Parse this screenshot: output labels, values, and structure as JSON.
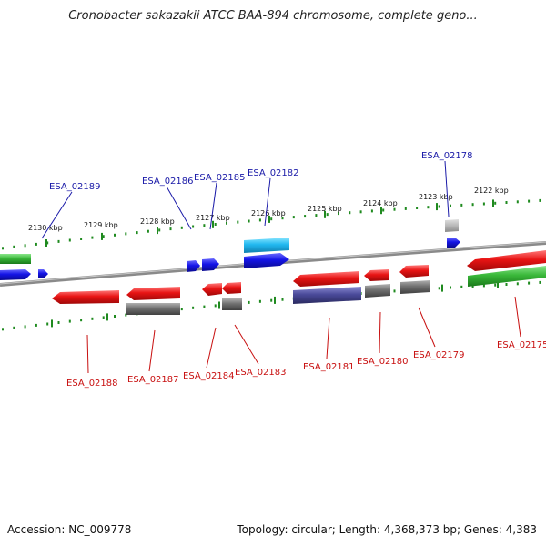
{
  "title": "Cronobacter sakazakii ATCC BAA-894 chromosome, complete geno...",
  "footer": {
    "accession_label": "Accession:",
    "accession": "NC_009778",
    "topology_summary": "Topology: circular; Length: 4,368,373 bp; Genes: 4,383"
  },
  "scale_ticks": [
    "2130 kbp",
    "2129 kbp",
    "2128 kbp",
    "2127 kbp",
    "2126 kbp",
    "2125 kbp",
    "2124 kbp",
    "2123 kbp",
    "2122 kbp"
  ],
  "top_gene_labels": [
    "ESA_02189",
    "ESA_02186",
    "ESA_02185",
    "ESA_02182",
    "ESA_02178"
  ],
  "bottom_gene_labels": [
    "ESA_02188",
    "ESA_02187",
    "ESA_02184",
    "ESA_02183",
    "ESA_02181",
    "ESA_02180",
    "ESA_02179",
    "ESA_02175"
  ],
  "colors": {
    "backbone": "#8a8a8a",
    "plus_strand_cds": "#1414e6",
    "plus_strand_rna": "#22b8f0",
    "minus_strand_cds": "#e81414",
    "minus_strand_pseudo": "#707070",
    "minus_strand_other": "#4a4a9a",
    "green_feature": "#3ab83a",
    "tick": "#1f8a1f",
    "label_plus": "#1a1aa8",
    "label_minus": "#c81010"
  }
}
